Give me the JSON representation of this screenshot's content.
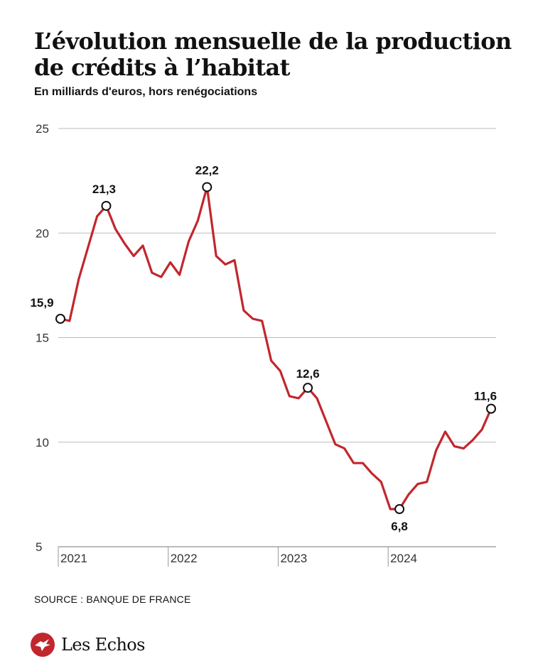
{
  "header": {
    "title": "L’évolution mensuelle de la production de crédits à l’habitat",
    "subtitle": "En milliards d'euros, hors renégociations"
  },
  "footer": {
    "source": "SOURCE : BANQUE DE FRANCE",
    "brand": "Les Echos"
  },
  "colors": {
    "line": "#c1272d",
    "grid": "#bbbbbb",
    "logo": "#c1272d"
  },
  "icons": {
    "logo": "les-echos-logo-icon"
  },
  "chart_data": {
    "type": "line",
    "title": "L’évolution mensuelle de la production de crédits à l’habitat",
    "ylabel": "En milliards d'euros, hors renégociations",
    "ylim": [
      5,
      25
    ],
    "yticks": [
      "25",
      "20",
      "15",
      "10",
      "5"
    ],
    "ytick_values": [
      25,
      20,
      15,
      10,
      5
    ],
    "xticks": [
      "2021",
      "2022",
      "2023",
      "2024"
    ],
    "grid": true,
    "legend": "none",
    "x": [
      "2021-01",
      "2021-02",
      "2021-03",
      "2021-04",
      "2021-05",
      "2021-06",
      "2021-07",
      "2021-08",
      "2021-09",
      "2021-10",
      "2021-11",
      "2021-12",
      "2022-01",
      "2022-02",
      "2022-03",
      "2022-04",
      "2022-05",
      "2022-06",
      "2022-07",
      "2022-08",
      "2022-09",
      "2022-10",
      "2022-11",
      "2022-12",
      "2023-01",
      "2023-02",
      "2023-03",
      "2023-04",
      "2023-05",
      "2023-06",
      "2023-07",
      "2023-08",
      "2023-09",
      "2023-10",
      "2023-11",
      "2023-12",
      "2024-01",
      "2024-02",
      "2024-03",
      "2024-04",
      "2024-05",
      "2024-06",
      "2024-07",
      "2024-08",
      "2024-09",
      "2024-10",
      "2024-11",
      "2024-12"
    ],
    "series": [
      {
        "values": [
          15.9,
          15.8,
          17.8,
          19.3,
          20.8,
          21.3,
          20.2,
          19.5,
          18.9,
          19.4,
          18.1,
          17.9,
          18.6,
          18.0,
          19.6,
          20.6,
          22.2,
          18.9,
          18.5,
          18.7,
          16.3,
          15.9,
          15.8,
          13.9,
          13.4,
          12.2,
          12.1,
          12.6,
          12.1,
          11.0,
          9.9,
          9.7,
          9.0,
          9.0,
          8.5,
          8.1,
          6.8,
          6.8,
          7.5,
          8.0,
          8.1,
          9.6,
          10.5,
          9.8,
          9.7,
          10.1,
          10.6,
          11.6
        ]
      }
    ],
    "annotations": [
      {
        "x": "2021-01",
        "value": 15.9,
        "text": "15,9"
      },
      {
        "x": "2021-06",
        "value": 21.3,
        "text": "21,3"
      },
      {
        "x": "2022-05",
        "value": 22.2,
        "text": "22,2"
      },
      {
        "x": "2023-04",
        "value": 12.6,
        "text": "12,6"
      },
      {
        "x": "2024-02",
        "value": 6.8,
        "text": "6,8"
      },
      {
        "x": "2024-12",
        "value": 11.6,
        "text": "11,6"
      }
    ]
  }
}
